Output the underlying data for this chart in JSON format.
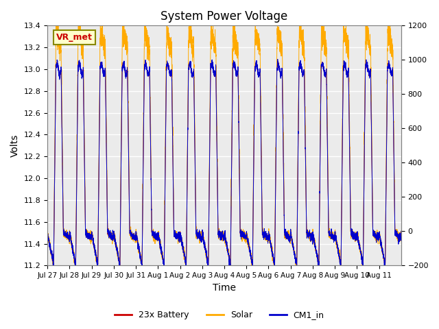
{
  "title": "System Power Voltage",
  "xlabel": "Time",
  "ylabel_left": "Volts",
  "ylim_left": [
    11.2,
    13.4
  ],
  "ylim_right": [
    -200,
    1200
  ],
  "yticks_left": [
    11.2,
    11.4,
    11.6,
    11.8,
    12.0,
    12.2,
    12.4,
    12.6,
    12.8,
    13.0,
    13.2,
    13.4
  ],
  "yticks_right": [
    -200,
    0,
    200,
    400,
    600,
    800,
    1000,
    1200
  ],
  "xtick_labels": [
    "Jul 27",
    "Jul 28",
    "Jul 29",
    "Jul 30",
    "Jul 31",
    "Aug 1",
    "Aug 2",
    "Aug 3",
    "Aug 4",
    "Aug 5",
    "Aug 6",
    "Aug 7",
    "Aug 8",
    "Aug 9",
    "Aug 10",
    "Aug 11"
  ],
  "color_battery": "#cc0000",
  "color_solar": "#ffaa00",
  "color_cm1": "#0000cc",
  "legend_labels": [
    "23x Battery",
    "Solar",
    "CM1_in"
  ],
  "annotation_text": "VR_met",
  "plot_bg_color": "#ebebeb",
  "n_days": 16
}
